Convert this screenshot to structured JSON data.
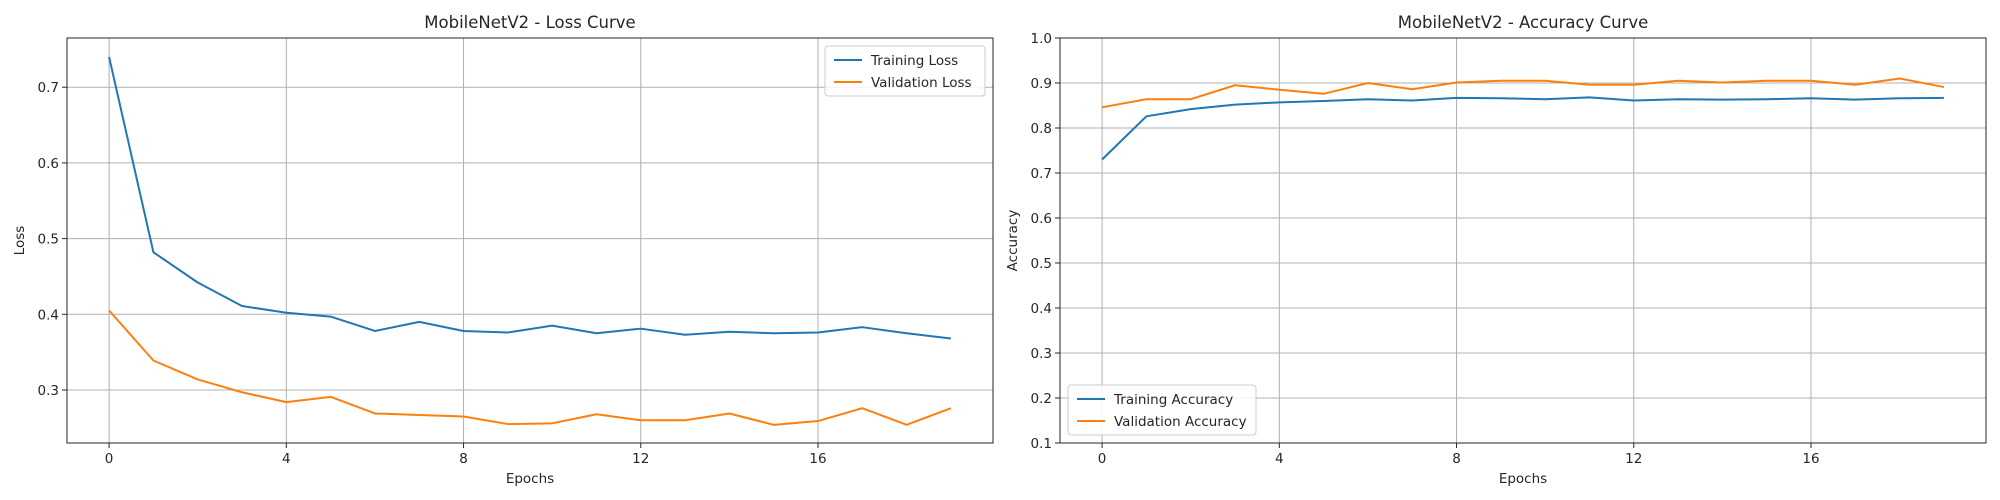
{
  "chart_data": [
    {
      "type": "line",
      "title": "MobileNetV2 - Loss Curve",
      "xlabel": "Epochs",
      "ylabel": "Loss",
      "xlim": [
        -0.95,
        19.95
      ],
      "ylim": [
        0.23,
        0.765
      ],
      "xticks": [
        0,
        4,
        8,
        12,
        16
      ],
      "yticks": [
        0.3,
        0.4,
        0.5,
        0.6,
        0.7
      ],
      "ytick_labels": [
        "0.3",
        "0.4",
        "0.5",
        "0.6",
        "0.7"
      ],
      "grid": true,
      "legend_position": "upper right",
      "x": [
        0,
        1,
        2,
        3,
        4,
        5,
        6,
        7,
        8,
        9,
        10,
        11,
        12,
        13,
        14,
        15,
        16,
        17,
        18,
        19
      ],
      "series": [
        {
          "name": "Training Loss",
          "color": "#1f77b4",
          "values": [
            0.74,
            0.482,
            0.442,
            0.411,
            0.402,
            0.397,
            0.378,
            0.39,
            0.378,
            0.376,
            0.385,
            0.375,
            0.381,
            0.373,
            0.377,
            0.375,
            0.376,
            0.383,
            0.375,
            0.368
          ]
        },
        {
          "name": "Validation Loss",
          "color": "#ff7f0e",
          "values": [
            0.405,
            0.339,
            0.314,
            0.297,
            0.284,
            0.291,
            0.269,
            0.267,
            0.265,
            0.255,
            0.256,
            0.268,
            0.26,
            0.26,
            0.269,
            0.254,
            0.259,
            0.276,
            0.254,
            0.276
          ]
        }
      ]
    },
    {
      "type": "line",
      "title": "MobileNetV2 - Accuracy Curve",
      "xlabel": "Epochs",
      "ylabel": "Accuracy",
      "xlim": [
        -0.95,
        19.95
      ],
      "ylim": [
        0.1,
        1.0
      ],
      "xticks": [
        0,
        4,
        8,
        12,
        16
      ],
      "yticks": [
        0.1,
        0.2,
        0.3,
        0.4,
        0.5,
        0.6,
        0.7,
        0.8,
        0.9,
        1.0
      ],
      "ytick_labels": [
        "0.1",
        "0.2",
        "0.3",
        "0.4",
        "0.5",
        "0.6",
        "0.7",
        "0.8",
        "0.9",
        "1.0"
      ],
      "grid": true,
      "legend_position": "lower left",
      "x": [
        0,
        1,
        2,
        3,
        4,
        5,
        6,
        7,
        8,
        9,
        10,
        11,
        12,
        13,
        14,
        15,
        16,
        17,
        18,
        19
      ],
      "series": [
        {
          "name": "Training Accuracy",
          "color": "#1f77b4",
          "values": [
            0.73,
            0.826,
            0.842,
            0.852,
            0.857,
            0.86,
            0.864,
            0.861,
            0.867,
            0.866,
            0.864,
            0.868,
            0.861,
            0.864,
            0.863,
            0.864,
            0.866,
            0.863,
            0.866,
            0.867
          ]
        },
        {
          "name": "Validation Accuracy",
          "color": "#ff7f0e",
          "values": [
            0.846,
            0.864,
            0.864,
            0.895,
            0.885,
            0.876,
            0.9,
            0.886,
            0.901,
            0.905,
            0.905,
            0.896,
            0.896,
            0.905,
            0.901,
            0.905,
            0.905,
            0.896,
            0.91,
            0.891
          ]
        }
      ]
    }
  ]
}
